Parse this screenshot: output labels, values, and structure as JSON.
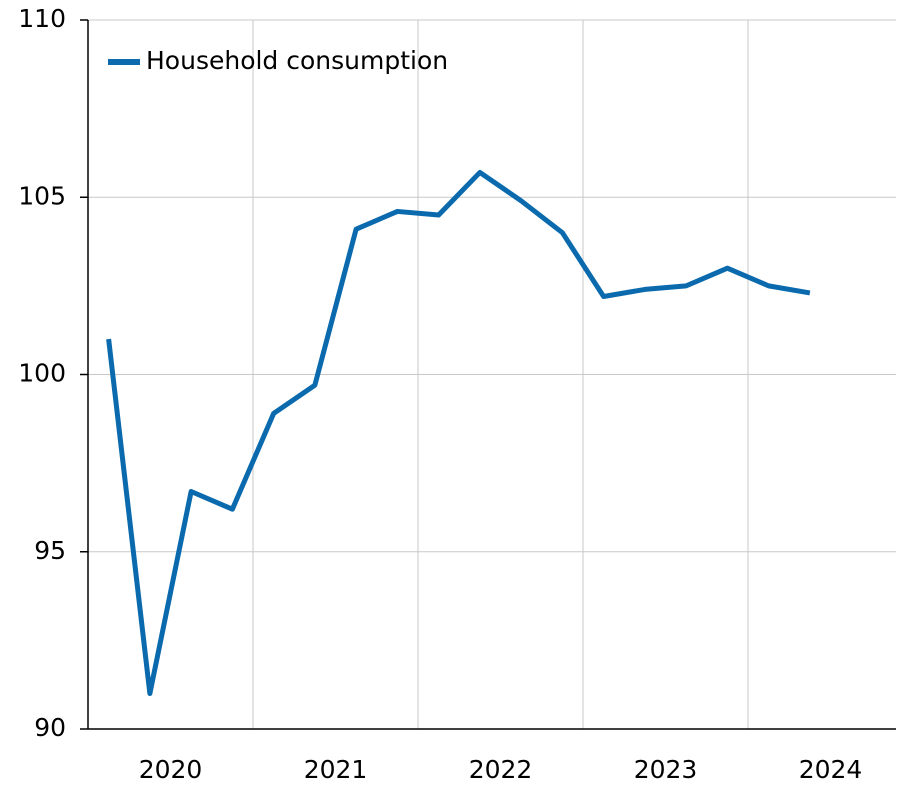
{
  "chart_data": {
    "type": "line",
    "categories": [
      "2020",
      null,
      null,
      null,
      "2021",
      null,
      null,
      null,
      "2022",
      null,
      null,
      null,
      "2023",
      null,
      null,
      null,
      "2024",
      null
    ],
    "series": [
      {
        "name": "Household consumption",
        "color": "#0a6aad",
        "values": [
          101.0,
          91.0,
          96.7,
          96.2,
          98.9,
          99.7,
          104.1,
          104.6,
          104.5,
          105.7,
          104.9,
          104.0,
          102.2,
          102.4,
          102.5,
          103.0,
          102.5,
          102.3
        ]
      }
    ],
    "ylim": [
      90,
      110
    ],
    "yticks": [
      90,
      95,
      100,
      105,
      110
    ],
    "grid": true,
    "legend": "top-left"
  }
}
